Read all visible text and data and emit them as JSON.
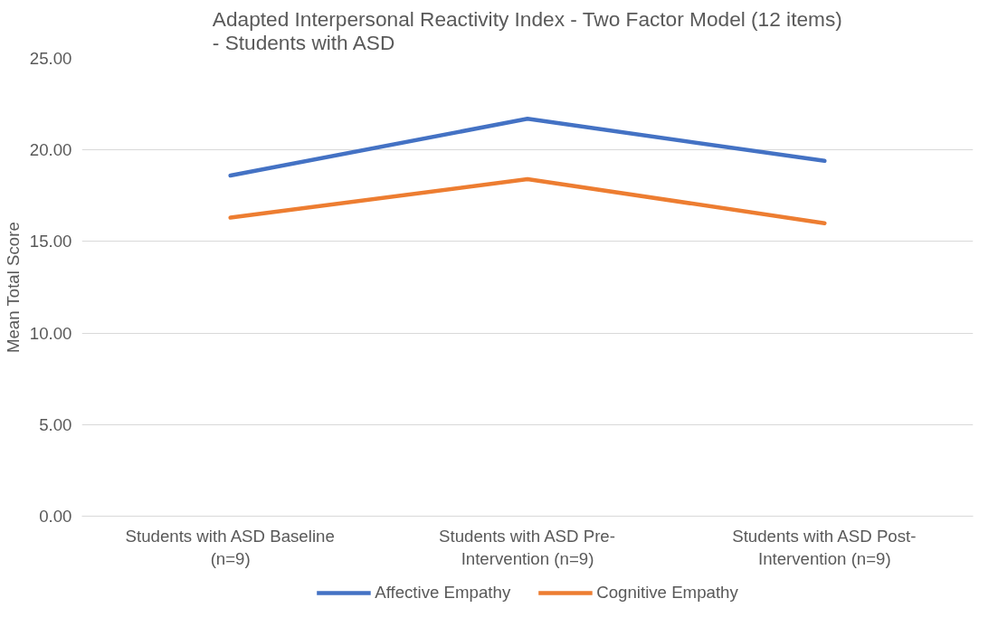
{
  "chart_data": {
    "type": "line",
    "title": "Adapted Interpersonal Reactivity Index - Two Factor Model (12 items) - Students with ASD",
    "ylabel": "Mean Total Score",
    "categories": [
      "Students with ASD Baseline (n=9)",
      "Students with ASD Pre-Intervention (n=9)",
      "Students with ASD Post-Intervention (n=9)"
    ],
    "series": [
      {
        "name": "Affective Empathy",
        "color": "#4472c4",
        "values": [
          18.6,
          21.7,
          19.4
        ]
      },
      {
        "name": "Cognitive Empathy",
        "color": "#ed7d31",
        "values": [
          16.3,
          18.4,
          16.0
        ]
      }
    ],
    "ylim": [
      0,
      25
    ],
    "yticks": [
      {
        "value": 0,
        "label": "0.00"
      },
      {
        "value": 5,
        "label": "5.00"
      },
      {
        "value": 10,
        "label": "10.00"
      },
      {
        "value": 15,
        "label": "15.00"
      },
      {
        "value": 20,
        "label": "20.00"
      },
      {
        "value": 25,
        "label": "25.00"
      }
    ],
    "grid": "y",
    "legend": "bottom",
    "marker": "none",
    "line_style": "solid"
  }
}
